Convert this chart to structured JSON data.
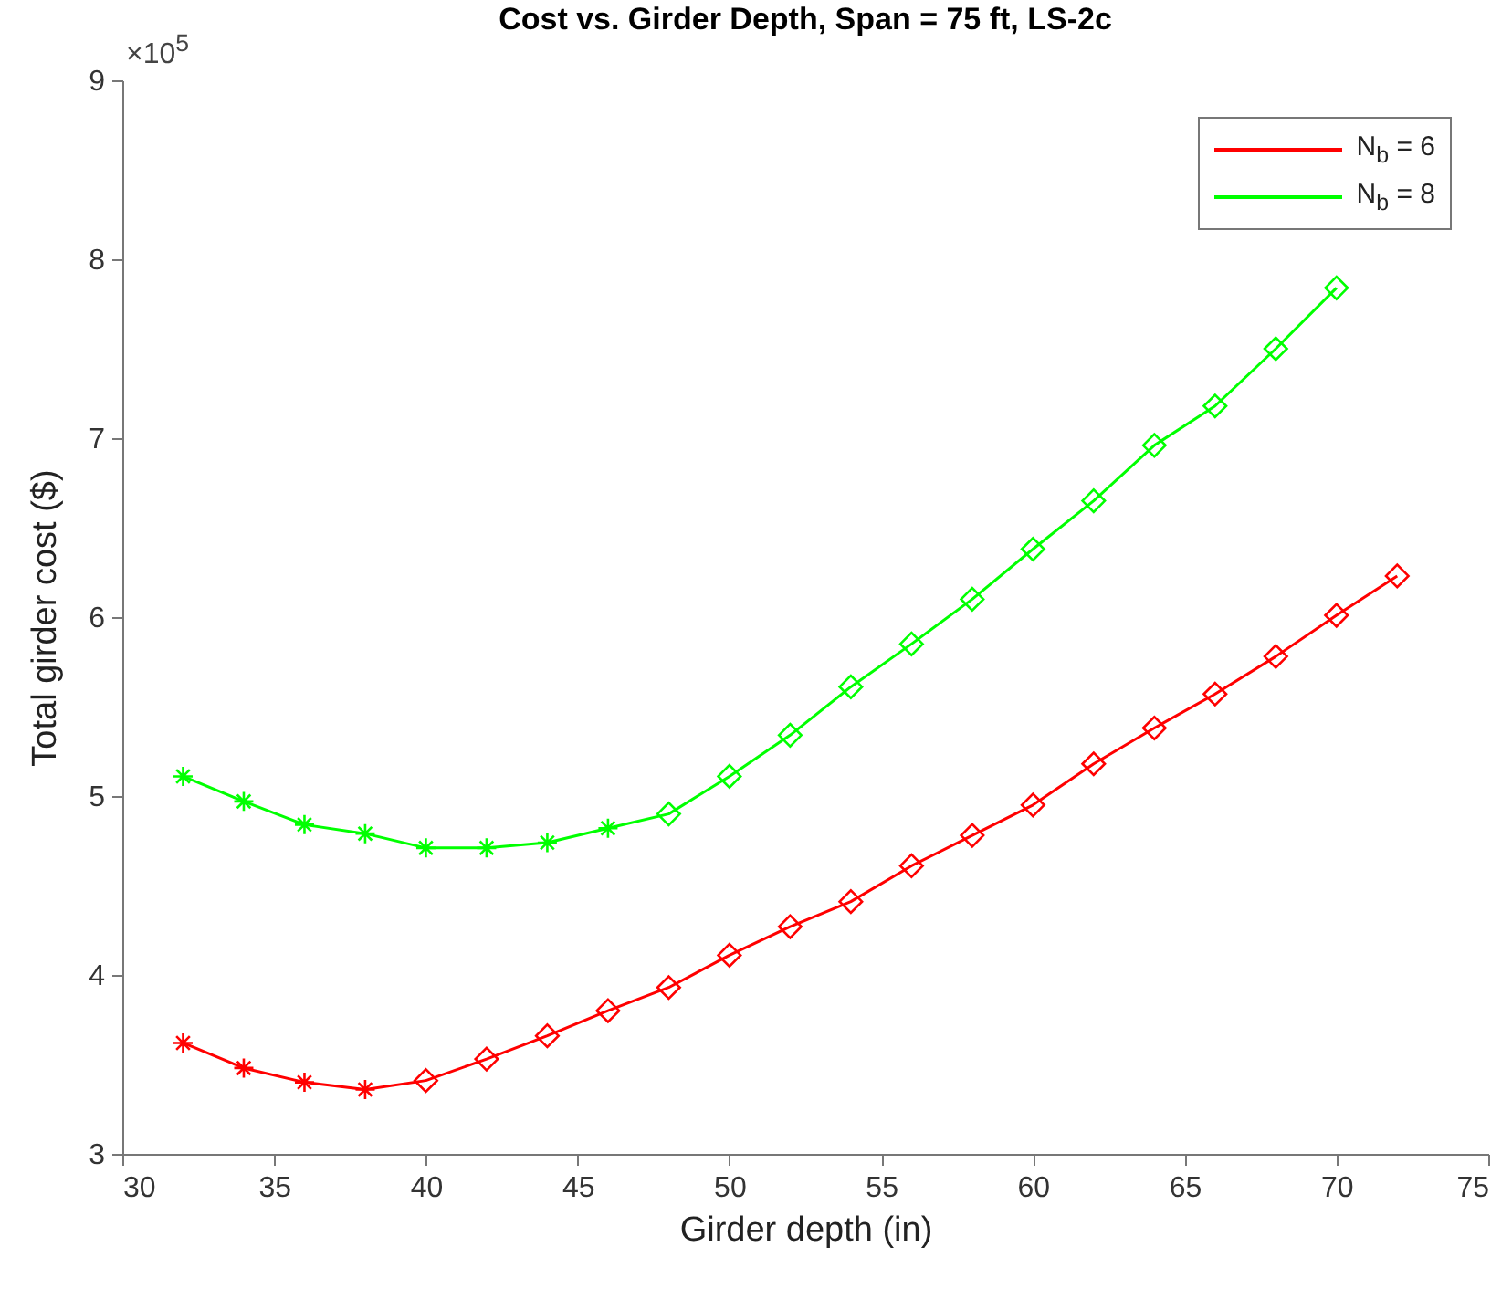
{
  "chart_data": {
    "type": "line",
    "title": "Cost vs. Girder Depth, Span = 75 ft, LS-2c",
    "xlabel": "Girder depth (in)",
    "ylabel": "Total girder cost ($)",
    "annotations": [
      "×10$^{5}$"
    ],
    "x": [
      32,
      34,
      36,
      38,
      40,
      42,
      44,
      46,
      48,
      50,
      52,
      54,
      56,
      58,
      60,
      62,
      64,
      66,
      68,
      70,
      72
    ],
    "series": [
      {
        "name": "N$_{b}$ = 6",
        "color": "#ff0000",
        "marker": "none",
        "values": [
          3.62,
          3.48,
          3.4,
          3.36,
          3.41,
          3.53,
          3.66,
          3.8,
          3.93,
          4.11,
          4.27,
          4.41,
          4.61,
          4.78,
          4.95,
          5.18,
          5.38,
          5.57,
          5.78,
          6.01,
          6.23
        ]
      },
      {
        "name": "N$_{b}$ = 8",
        "color": "#00ff00",
        "marker": "none",
        "values": [
          5.11,
          4.97,
          4.84,
          4.79,
          4.71,
          4.71,
          4.74,
          4.82,
          4.9,
          5.11,
          5.34,
          5.61,
          5.85,
          6.1,
          6.38,
          6.65,
          6.96,
          7.18,
          7.5,
          7.84,
          null
        ]
      },
      {
        "type": "scatter",
        "color": "#ff0000",
        "marker": "cross",
        "values": [
          3.62,
          3.48,
          3.4,
          3.36,
          null,
          null,
          null,
          null,
          null,
          null,
          null,
          null,
          null,
          null,
          null,
          null,
          null,
          null,
          null,
          null,
          null
        ]
      },
      {
        "type": "scatter",
        "color": "#ff0000",
        "marker": "diamond",
        "values": [
          null,
          null,
          null,
          null,
          3.41,
          3.53,
          3.66,
          3.8,
          3.93,
          4.11,
          4.27,
          4.41,
          4.61,
          4.78,
          4.95,
          5.18,
          5.38,
          5.57,
          5.78,
          6.01,
          6.23
        ]
      },
      {
        "type": "scatter",
        "color": "#00ff00",
        "marker": "cross",
        "values": [
          5.11,
          4.97,
          4.84,
          4.79,
          4.71,
          4.71,
          4.74,
          4.82,
          null,
          null,
          null,
          null,
          null,
          null,
          null,
          null,
          null,
          null,
          null,
          null,
          null
        ]
      },
      {
        "type": "scatter",
        "color": "#00ff00",
        "marker": "diamond",
        "values": [
          null,
          null,
          null,
          null,
          null,
          null,
          null,
          null,
          4.9,
          5.11,
          5.34,
          5.61,
          5.85,
          6.1,
          6.38,
          6.65,
          6.96,
          7.18,
          7.5,
          7.84,
          null
        ]
      }
    ],
    "xlim": [
      30,
      75
    ],
    "xticks": [
      30,
      35,
      40,
      45,
      50,
      55,
      60,
      65,
      70,
      75
    ],
    "ylim": [
      3,
      9
    ],
    "yticks": [
      3,
      4,
      5,
      6,
      7,
      8,
      9
    ],
    "legend": "top right"
  }
}
